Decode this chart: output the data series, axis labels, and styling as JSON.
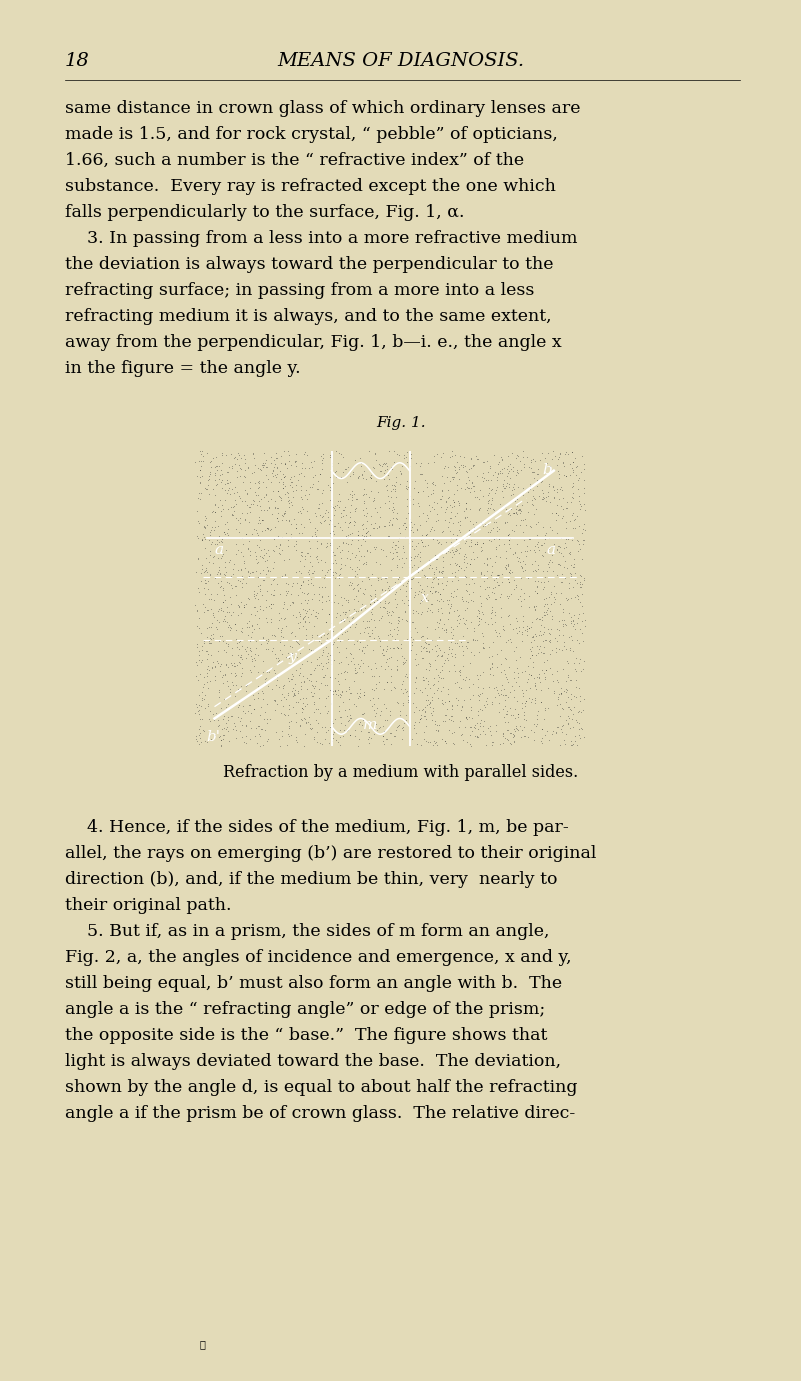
{
  "background_color": "#e3dbb8",
  "page_number": "18",
  "header_title": "MEANS OF DIAGNOSIS.",
  "fig1_caption": "Fig. 1.",
  "fig1_subcaption": "Refraction by a medium with parallel sides.",
  "diagram_bg": "#0d0d0d",
  "text_lines": [
    "same distance in crown glass of which ordinary lenses are",
    "made is 1.5, and for rock crystal, “ pebble” of opticians,",
    "1.66, such a number is the “ refractive index” of the",
    "substance.  Every ray is refracted except the one which",
    "falls perpendicularly to the surface, Fig. 1, α.",
    "    3. In passing from a less into a more refractive medium",
    "the deviation is always toward the perpendicular to the",
    "refracting surface; in passing from a more into a less",
    "refracting medium it is always, and to the same extent,",
    "away from the perpendicular, Fig. 1, b—i. e., the angle x",
    "in the figure = the angle y."
  ],
  "text_lines2": [
    "    4. Hence, if the sides of the medium, Fig. 1, m, be par-",
    "allel, the rays on emerging (b’) are restored to their original",
    "direction (b), and, if the medium be thin, very  nearly to",
    "their original path.",
    "    5. But if, as in a prism, the sides of m form an angle,",
    "Fig. 2, a, the angles of incidence and emergence, x and y,",
    "still being equal, b’ must also form an angle with b.  The",
    "angle a is the “ refracting angle” or edge of the prism;",
    "the opposite side is the “ base.”  The figure shows that",
    "light is always deviated toward the base.  The deviation,",
    "shown by the angle d, is equal to about half the refracting",
    "angle a if the prism be of crown glass.  The relative direc-"
  ]
}
